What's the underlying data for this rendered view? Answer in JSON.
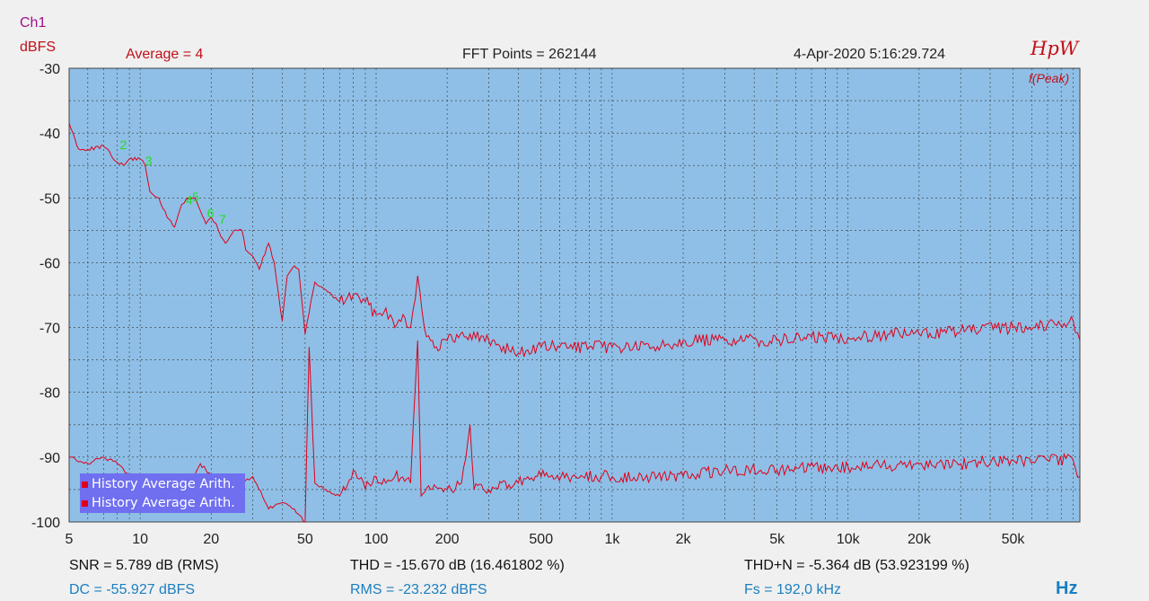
{
  "header": {
    "channel": "Ch1",
    "y_unit": "dBFS",
    "average": "Average = 4",
    "fft_points": "FFT Points = 262144",
    "datetime": "4-Apr-2020   5:16:29.724",
    "brand": "HpW",
    "mode": "f(Peak)"
  },
  "colors": {
    "plot_bg": "#8fbfe6",
    "trace": "#e0001a",
    "harmonic_marker": "#22dd22",
    "legend_bg": "#6f6ff0",
    "accent_blue": "#1a7fc0"
  },
  "footer": {
    "snr": "SNR = 5.789 dB (RMS)",
    "thd": "THD = -15.670 dB (16.461802 %)",
    "thdn": "THD+N = -5.364 dB (53.923199 %)",
    "dc": "DC = -55.927 dBFS",
    "rms": "RMS = -23.232 dBFS",
    "fs": "Fs = 192,0 kHz",
    "x_unit": "Hz"
  },
  "legend": [
    {
      "label": "History Average Arith."
    },
    {
      "label": "History Average Arith."
    }
  ],
  "chart_data": {
    "type": "line",
    "x_scale": "log",
    "xlim": [
      5,
      96000
    ],
    "ylim": [
      -100,
      -30
    ],
    "grid": true,
    "x_ticks": [
      5,
      10,
      20,
      50,
      100,
      200,
      500,
      1000,
      2000,
      5000,
      10000,
      20000,
      50000
    ],
    "x_tick_labels": [
      "5",
      "10",
      "20",
      "50",
      "100",
      "200",
      "500",
      "1k",
      "2k",
      "5k",
      "10k",
      "20k",
      "50k"
    ],
    "y_ticks": [
      -30,
      -40,
      -50,
      -60,
      -70,
      -80,
      -90,
      -100
    ],
    "y_tick_labels": [
      "-30",
      "-40",
      "-50",
      "-60",
      "-70",
      "-80",
      "-90",
      "-100"
    ],
    "series": [
      {
        "name": "History Average Arith.",
        "x": [
          5,
          5.5,
          6,
          7,
          8,
          8.5,
          9,
          10,
          10.5,
          11,
          12,
          13,
          14,
          15,
          16,
          17,
          18,
          19,
          20,
          21,
          22,
          23,
          24,
          25,
          27,
          28,
          30,
          32,
          35,
          37,
          40,
          42,
          45,
          47,
          50,
          55,
          60,
          70,
          80,
          90,
          100,
          110,
          120,
          130,
          140,
          150,
          160,
          170,
          180,
          200,
          250,
          300,
          400,
          500,
          600,
          800,
          1000,
          1500,
          2000,
          3000,
          5000,
          7000,
          10000,
          15000,
          20000,
          30000,
          50000,
          70000,
          90000,
          96000
        ],
        "y": [
          -38.5,
          -42.5,
          -42.5,
          -42,
          -44.5,
          -45,
          -44,
          -44,
          -45,
          -49,
          -50,
          -53,
          -54.5,
          -51,
          -50,
          -50,
          -52,
          -54,
          -53,
          -54,
          -56,
          -57,
          -56,
          -55,
          -55,
          -58,
          -59,
          -61,
          -57,
          -60,
          -69,
          -62,
          -60.5,
          -61,
          -71,
          -63,
          -64,
          -66,
          -65,
          -66,
          -68,
          -67,
          -70,
          -68,
          -70,
          -62,
          -70,
          -72,
          -73,
          -72,
          -71,
          -72,
          -74,
          -73,
          -73,
          -73,
          -73,
          -73,
          -72,
          -72,
          -72,
          -71.5,
          -71.5,
          -71,
          -71,
          -70.5,
          -70,
          -69.5,
          -69,
          -72
        ]
      },
      {
        "name": "History Average Arith.",
        "x": [
          5,
          6,
          7,
          8,
          9,
          10,
          12,
          15,
          18,
          20,
          22,
          25,
          30,
          35,
          40,
          45,
          50,
          52,
          55,
          60,
          70,
          80,
          90,
          100,
          110,
          120,
          140,
          150,
          155,
          170,
          200,
          230,
          250,
          260,
          300,
          400,
          500,
          700,
          1000,
          2000,
          3000,
          5000,
          10000,
          20000,
          30000,
          50000,
          70000,
          90000,
          96000
        ],
        "y": [
          -90,
          -91,
          -90,
          -91,
          -93,
          -93,
          -95,
          -97,
          -91,
          -93,
          -94,
          -95,
          -93,
          -98,
          -97,
          -98,
          -100,
          -73,
          -94,
          -95,
          -96,
          -92,
          -95,
          -93,
          -94,
          -93,
          -94,
          -72,
          -96,
          -95,
          -95,
          -94,
          -85,
          -95,
          -95,
          -94,
          -93,
          -93,
          -93,
          -93,
          -92,
          -92,
          -91.5,
          -91,
          -91,
          -90.5,
          -90.5,
          -90.5,
          -93
        ]
      }
    ],
    "annotations": [
      {
        "text": "2",
        "x": 8.2,
        "y": -42.5
      },
      {
        "text": "3",
        "x": 10.5,
        "y": -45
      },
      {
        "text": "4",
        "x": 15.6,
        "y": -51
      },
      {
        "text": "5",
        "x": 16.6,
        "y": -50.5
      },
      {
        "text": "6",
        "x": 19.2,
        "y": -53
      },
      {
        "text": "7",
        "x": 21.6,
        "y": -54
      }
    ]
  }
}
